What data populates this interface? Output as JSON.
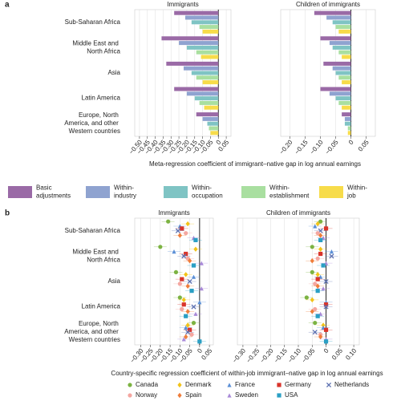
{
  "chart_data": [
    {
      "type": "bar",
      "panel_label": "a",
      "title": "Immigrants",
      "categories": [
        "Sub-Saharan Africa",
        "Middle East and North Africa",
        "Asia",
        "Latin America",
        "Europe, North America, and other Western countries"
      ],
      "xlabel": "Meta-regression coefficient of immigrant–native gap in log annual earnings",
      "xlim": [
        -0.53,
        0.08
      ],
      "xticks": [
        {
          "value": -0.5,
          "label": "−0.50"
        },
        {
          "value": -0.45,
          "label": "−0.45"
        },
        {
          "value": -0.4,
          "label": "−0.40"
        },
        {
          "value": -0.35,
          "label": "−0.35"
        },
        {
          "value": -0.3,
          "label": "−0.30"
        },
        {
          "value": -0.25,
          "label": "−0.25"
        },
        {
          "value": -0.2,
          "label": "−0.20"
        },
        {
          "value": -0.15,
          "label": "−0.15"
        },
        {
          "value": -0.1,
          "label": "−0.10"
        },
        {
          "value": -0.05,
          "label": "−0.05"
        },
        0,
        0.05
      ],
      "series": [
        {
          "name": "Basic adjustments",
          "color": "#9a6aa6",
          "values": [
            -0.28,
            -0.36,
            -0.33,
            -0.28,
            -0.14
          ]
        },
        {
          "name": "Within-industry",
          "color": "#8fa3d0",
          "values": [
            -0.21,
            -0.25,
            -0.22,
            -0.2,
            -0.1
          ]
        },
        {
          "name": "Within-occupation",
          "color": "#7fc4c4",
          "values": [
            -0.17,
            -0.2,
            -0.17,
            -0.15,
            -0.07
          ]
        },
        {
          "name": "Within-establishment",
          "color": "#a9dfa0",
          "values": [
            -0.12,
            -0.14,
            -0.14,
            -0.12,
            -0.06
          ]
        },
        {
          "name": "Within-job",
          "color": "#f7dc4a",
          "values": [
            -0.1,
            -0.11,
            -0.1,
            -0.09,
            -0.05
          ]
        }
      ]
    },
    {
      "type": "bar",
      "title": "Children of immigrants",
      "xlim": [
        -0.23,
        0.08
      ],
      "xticks": [
        {
          "value": -0.2,
          "label": "−0.20"
        },
        {
          "value": -0.15,
          "label": "−0.15"
        },
        {
          "value": -0.1,
          "label": "−0.10"
        },
        {
          "value": -0.05,
          "label": "−0.05"
        },
        0,
        0.05
      ],
      "series": [
        {
          "color": "#9a6aa6",
          "values": [
            -0.12,
            -0.1,
            -0.09,
            -0.1,
            -0.03
          ]
        },
        {
          "color": "#8fa3d0",
          "values": [
            -0.08,
            -0.07,
            -0.06,
            -0.07,
            -0.02
          ]
        },
        {
          "color": "#7fc4c4",
          "values": [
            -0.06,
            -0.06,
            -0.05,
            -0.05,
            -0.02
          ]
        },
        {
          "color": "#a9dfa0",
          "values": [
            -0.05,
            -0.04,
            -0.04,
            -0.04,
            -0.01
          ]
        },
        {
          "color": "#f7dc4a",
          "values": [
            -0.04,
            -0.03,
            -0.03,
            -0.03,
            -0.01
          ]
        }
      ]
    },
    {
      "type": "dot",
      "panel_label": "b",
      "title": "Immigrants",
      "categories": [
        "Sub-Saharan Africa",
        "Middle East and North Africa",
        "Asia",
        "Latin America",
        "Europe, North America, and other Western countries"
      ],
      "xlabel": "Country-specific regression coefficient of within-job immigrant–native gap in log annual earnings",
      "xlim": [
        -0.33,
        0.07
      ],
      "xticks": [
        {
          "value": -0.3,
          "label": "−0.30"
        },
        {
          "value": -0.25,
          "label": "−0.25"
        },
        {
          "value": -0.2,
          "label": "−0.20"
        },
        {
          "value": -0.15,
          "label": "−0.15"
        },
        {
          "value": -0.1,
          "label": "−0.10"
        },
        {
          "value": -0.05,
          "label": "−0.05"
        },
        0,
        0.05
      ],
      "series": [
        {
          "name": "Canada",
          "color": "#7cb342",
          "marker": "circle",
          "values": [
            -0.16,
            -0.2,
            -0.12,
            -0.1,
            -0.03
          ]
        },
        {
          "name": "Denmark",
          "color": "#f2c318",
          "marker": "diamond",
          "values": [
            -0.06,
            -0.02,
            -0.07,
            -0.08,
            -0.06
          ]
        },
        {
          "name": "France",
          "color": "#5b8fd6",
          "marker": "triangle",
          "values": [
            -0.1,
            -0.13,
            -0.03,
            0.0,
            -0.07
          ]
        },
        {
          "name": "Germany",
          "color": "#d9342b",
          "marker": "square",
          "values": [
            -0.09,
            -0.07,
            -0.09,
            -0.08,
            -0.05
          ]
        },
        {
          "name": "Netherlands",
          "color": "#5a6fb0",
          "marker": "cross",
          "values": [
            -0.11,
            -0.08,
            -0.05,
            -0.03,
            -0.06
          ]
        },
        {
          "name": "Norway",
          "color": "#f4a6a0",
          "marker": "circle",
          "values": [
            -0.07,
            -0.06,
            -0.1,
            -0.09,
            -0.04
          ]
        },
        {
          "name": "Spain",
          "color": "#ef7d3a",
          "marker": "diamond",
          "values": [
            -0.1,
            -0.05,
            -0.06,
            -0.06,
            -0.07
          ]
        },
        {
          "name": "Sweden",
          "color": "#a98ad8",
          "marker": "triangle",
          "values": [
            -0.03,
            0.01,
            0.01,
            -0.02,
            -0.08
          ]
        },
        {
          "name": "USA",
          "color": "#2a9fc4",
          "marker": "square",
          "values": [
            -0.02,
            -0.03,
            -0.04,
            -0.07,
            0.0
          ]
        }
      ]
    },
    {
      "type": "dot",
      "title": "Children of immigrants",
      "xlim": [
        -0.32,
        0.12
      ],
      "xticks": [
        {
          "value": -0.3,
          "label": "−0.30"
        },
        {
          "value": -0.25,
          "label": "−0.25"
        },
        {
          "value": -0.2,
          "label": "−0.20"
        },
        {
          "value": -0.15,
          "label": "−0.15"
        },
        {
          "value": -0.1,
          "label": "−0.10"
        },
        {
          "value": -0.05,
          "label": "−0.05"
        },
        0,
        0.05,
        {
          "value": 0.1,
          "label": "0.10"
        }
      ],
      "series": [
        {
          "color": "#7cb342",
          "marker": "circle",
          "values": [
            -0.02,
            -0.05,
            -0.05,
            -0.07,
            -0.04
          ]
        },
        {
          "color": "#f2c318",
          "marker": "diamond",
          "values": [
            -0.03,
            -0.02,
            -0.03,
            -0.05,
            -0.01
          ]
        },
        {
          "color": "#5b8fd6",
          "marker": "triangle",
          "values": [
            -0.04,
            0.02,
            -0.02,
            0.0,
            -0.01
          ]
        },
        {
          "color": "#d9342b",
          "marker": "square",
          "values": [
            0.0,
            -0.02,
            -0.03,
            0.0,
            0.0
          ]
        },
        {
          "color": "#5a6fb0",
          "marker": "cross",
          "values": [
            -0.02,
            0.02,
            0.0,
            0.0,
            -0.04
          ]
        },
        {
          "color": "#f4a6a0",
          "marker": "circle",
          "values": [
            -0.03,
            -0.03,
            -0.04,
            -0.04,
            -0.02
          ]
        },
        {
          "color": "#ef7d3a",
          "marker": "diamond",
          "values": [
            -0.02,
            -0.05,
            -0.03,
            -0.05,
            -0.02
          ]
        },
        {
          "color": "#a98ad8",
          "marker": "triangle",
          "values": [
            -0.01,
            0.0,
            -0.01,
            -0.02,
            0.0
          ]
        },
        {
          "color": "#2a9fc4",
          "marker": "square",
          "values": [
            -0.02,
            -0.01,
            -0.03,
            -0.03,
            0.0
          ]
        }
      ]
    }
  ]
}
